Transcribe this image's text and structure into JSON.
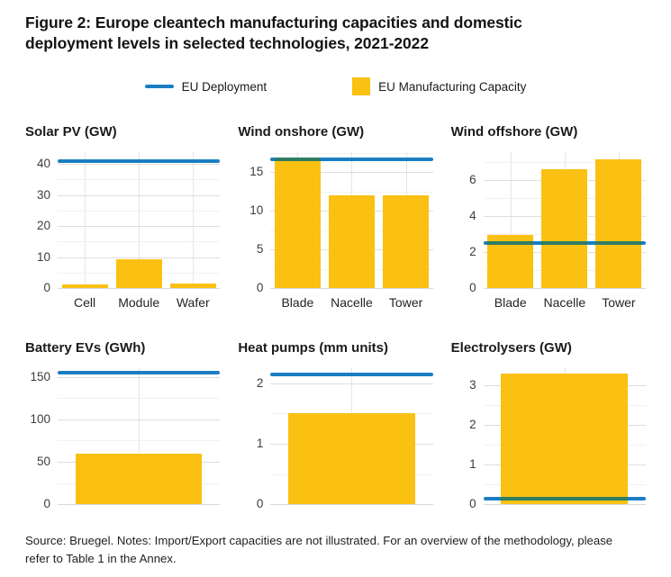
{
  "figure": {
    "title": "Figure 2: Europe cleantech manufacturing capacities and domestic deployment levels in selected technologies, 2021-2022",
    "source_note": "Source: Bruegel. Notes: Import/Export capacities are not illustrated. For an overview of the methodology, please refer to Table 1 in the Annex."
  },
  "legend": {
    "items": [
      {
        "label": "EU Deployment",
        "swatch": "line",
        "color": "#1B7EC3"
      },
      {
        "label": "EU Manufacturing Capacity",
        "swatch": "square",
        "color": "#FBC112"
      }
    ]
  },
  "colors": {
    "deployment_line": "#1B7EC3",
    "capacity_bar": "#FBC112",
    "line_over_bar_overlap": "#2E7D62",
    "grid_major": "#DEDEDE",
    "grid_minor": "#F1F1F1",
    "text_dark": "#1A1A1A"
  },
  "chart_data": [
    {
      "id": "solar-pv",
      "type": "bar",
      "title": "Solar PV (GW)",
      "categories": [
        "Cell",
        "Module",
        "Wafer"
      ],
      "values": [
        1.2,
        9.2,
        1.5
      ],
      "deployment_line": 41,
      "yticks": [
        0,
        10,
        20,
        30,
        40
      ],
      "ylim": [
        0,
        44
      ],
      "grid": true,
      "legend_position": "top",
      "show_xlabels": true
    },
    {
      "id": "wind-onshore",
      "type": "bar",
      "title": "Wind onshore (GW)",
      "categories": [
        "Blade",
        "Nacelle",
        "Tower"
      ],
      "values": [
        16.9,
        12,
        12
      ],
      "deployment_line": 16.7,
      "yticks": [
        0,
        5,
        10,
        15
      ],
      "ylim": [
        0,
        17.7
      ],
      "grid": true,
      "legend_position": "top",
      "show_xlabels": true
    },
    {
      "id": "wind-offshore",
      "type": "bar",
      "title": "Wind offshore (GW)",
      "categories": [
        "Blade",
        "Nacelle",
        "Tower"
      ],
      "values": [
        2.95,
        6.6,
        7.15
      ],
      "deployment_line": 2.5,
      "yticks": [
        0,
        2,
        4,
        6
      ],
      "ylim": [
        0,
        7.6
      ],
      "grid": true,
      "legend_position": "top",
      "show_xlabels": true
    },
    {
      "id": "battery-evs",
      "type": "bar",
      "title": "Battery EVs (GWh)",
      "categories": [
        ""
      ],
      "values": [
        60
      ],
      "deployment_line": 155,
      "yticks": [
        0,
        50,
        100,
        150
      ],
      "ylim": [
        0,
        161
      ],
      "grid": true,
      "legend_position": "top",
      "show_xlabels": false
    },
    {
      "id": "heat-pumps",
      "type": "bar",
      "title": "Heat pumps (mm units)",
      "categories": [
        ""
      ],
      "values": [
        1.5
      ],
      "deployment_line": 2.15,
      "yticks": [
        0,
        1,
        2
      ],
      "ylim": [
        0,
        2.26
      ],
      "grid": true,
      "legend_position": "top",
      "show_xlabels": false
    },
    {
      "id": "electrolysers",
      "type": "bar",
      "title": "Electrolysers (GW)",
      "categories": [
        ""
      ],
      "values": [
        3.3
      ],
      "deployment_line": 0.15,
      "yticks": [
        0,
        1,
        2,
        3
      ],
      "ylim": [
        0,
        3.45
      ],
      "grid": true,
      "legend_position": "top",
      "show_xlabels": false
    }
  ]
}
